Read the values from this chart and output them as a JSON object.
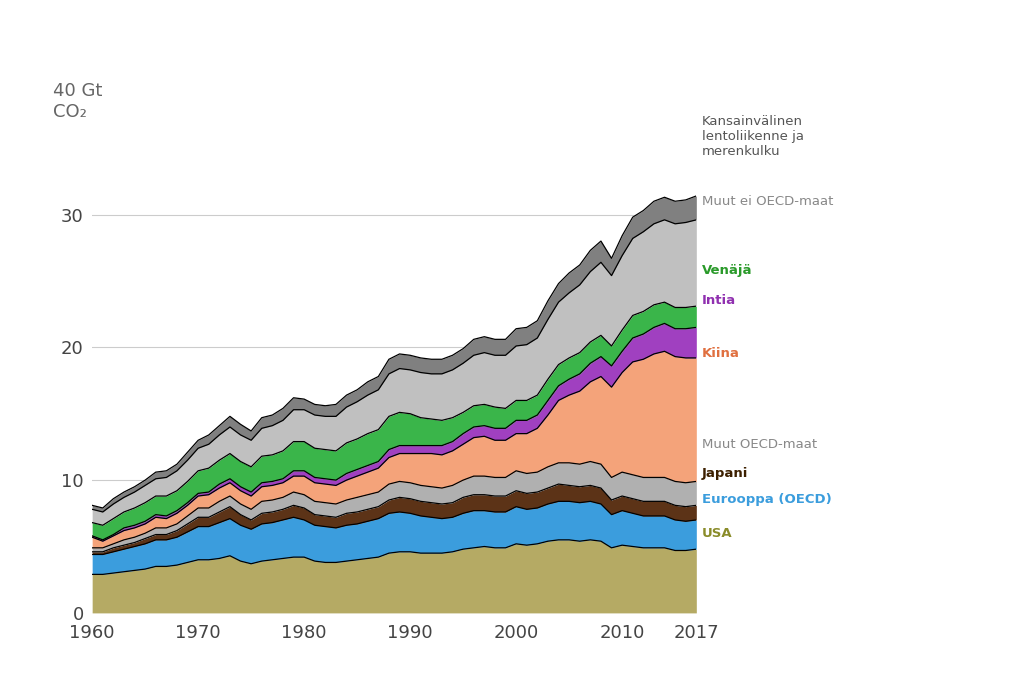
{
  "ylim": [
    0,
    40
  ],
  "xlim": [
    1960,
    2017
  ],
  "yticks": [
    0,
    10,
    20,
    30
  ],
  "xticks": [
    1960,
    1970,
    1980,
    1990,
    2000,
    2010,
    2017
  ],
  "background_color": "#ffffff",
  "years": [
    1960,
    1961,
    1962,
    1963,
    1964,
    1965,
    1966,
    1967,
    1968,
    1969,
    1970,
    1971,
    1972,
    1973,
    1974,
    1975,
    1976,
    1977,
    1978,
    1979,
    1980,
    1981,
    1982,
    1983,
    1984,
    1985,
    1986,
    1987,
    1988,
    1989,
    1990,
    1991,
    1992,
    1993,
    1994,
    1995,
    1996,
    1997,
    1998,
    1999,
    2000,
    2001,
    2002,
    2003,
    2004,
    2005,
    2006,
    2007,
    2008,
    2009,
    2010,
    2011,
    2012,
    2013,
    2014,
    2015,
    2016,
    2017
  ],
  "series": {
    "USA": {
      "color": "#b5aa64",
      "label_color": "#8a8c2a",
      "values": [
        2.9,
        2.9,
        3.0,
        3.1,
        3.2,
        3.3,
        3.5,
        3.5,
        3.6,
        3.8,
        4.0,
        4.0,
        4.1,
        4.3,
        3.9,
        3.7,
        3.9,
        4.0,
        4.1,
        4.2,
        4.2,
        3.9,
        3.8,
        3.8,
        3.9,
        4.0,
        4.1,
        4.2,
        4.5,
        4.6,
        4.6,
        4.5,
        4.5,
        4.5,
        4.6,
        4.8,
        4.9,
        5.0,
        4.9,
        4.9,
        5.2,
        5.1,
        5.2,
        5.4,
        5.5,
        5.5,
        5.4,
        5.5,
        5.4,
        4.9,
        5.1,
        5.0,
        4.9,
        4.9,
        4.9,
        4.7,
        4.7,
        4.8
      ]
    },
    "Eurooppa (OECD)": {
      "color": "#3b9ddd",
      "label_color": "#3b9ddd",
      "values": [
        1.5,
        1.5,
        1.6,
        1.7,
        1.8,
        1.9,
        2.0,
        2.0,
        2.1,
        2.3,
        2.5,
        2.5,
        2.7,
        2.8,
        2.7,
        2.6,
        2.8,
        2.8,
        2.9,
        3.0,
        2.8,
        2.7,
        2.7,
        2.6,
        2.7,
        2.7,
        2.8,
        2.9,
        3.0,
        3.0,
        2.9,
        2.8,
        2.7,
        2.6,
        2.6,
        2.7,
        2.8,
        2.7,
        2.7,
        2.7,
        2.8,
        2.7,
        2.7,
        2.8,
        2.9,
        2.9,
        2.9,
        2.9,
        2.8,
        2.5,
        2.6,
        2.5,
        2.4,
        2.4,
        2.4,
        2.3,
        2.2,
        2.2
      ]
    },
    "Japani": {
      "color": "#5c3317",
      "label_color": "#3d2000",
      "values": [
        0.2,
        0.2,
        0.3,
        0.3,
        0.3,
        0.4,
        0.4,
        0.4,
        0.5,
        0.6,
        0.7,
        0.7,
        0.8,
        0.9,
        0.8,
        0.7,
        0.8,
        0.8,
        0.8,
        0.9,
        0.9,
        0.8,
        0.8,
        0.8,
        0.9,
        0.9,
        0.9,
        0.9,
        1.0,
        1.1,
        1.1,
        1.1,
        1.1,
        1.1,
        1.1,
        1.2,
        1.2,
        1.2,
        1.2,
        1.2,
        1.2,
        1.2,
        1.2,
        1.2,
        1.3,
        1.2,
        1.2,
        1.2,
        1.2,
        1.1,
        1.1,
        1.1,
        1.1,
        1.1,
        1.1,
        1.1,
        1.1,
        1.1
      ]
    },
    "Muut OECD-maat": {
      "color": "#b0b0b0",
      "label_color": "#888888",
      "values": [
        0.3,
        0.3,
        0.3,
        0.4,
        0.4,
        0.4,
        0.5,
        0.5,
        0.5,
        0.6,
        0.7,
        0.7,
        0.8,
        0.8,
        0.8,
        0.8,
        0.9,
        0.9,
        0.9,
        1.0,
        1.0,
        1.0,
        1.0,
        1.0,
        1.0,
        1.1,
        1.1,
        1.1,
        1.2,
        1.2,
        1.2,
        1.2,
        1.2,
        1.2,
        1.3,
        1.3,
        1.4,
        1.4,
        1.4,
        1.4,
        1.5,
        1.5,
        1.5,
        1.6,
        1.6,
        1.7,
        1.7,
        1.8,
        1.8,
        1.7,
        1.8,
        1.8,
        1.8,
        1.8,
        1.8,
        1.8,
        1.8,
        1.8
      ]
    },
    "Kiina": {
      "color": "#f4a37a",
      "label_color": "#e07040",
      "values": [
        0.8,
        0.5,
        0.6,
        0.7,
        0.7,
        0.7,
        0.8,
        0.7,
        0.8,
        0.8,
        0.9,
        1.0,
        1.0,
        1.0,
        1.0,
        1.0,
        1.1,
        1.1,
        1.1,
        1.2,
        1.4,
        1.4,
        1.4,
        1.4,
        1.5,
        1.6,
        1.7,
        1.8,
        2.0,
        2.1,
        2.2,
        2.4,
        2.5,
        2.5,
        2.6,
        2.7,
        2.9,
        3.0,
        2.8,
        2.8,
        2.8,
        3.0,
        3.3,
        3.9,
        4.7,
        5.1,
        5.5,
        6.0,
        6.6,
        6.8,
        7.5,
        8.5,
        8.9,
        9.3,
        9.5,
        9.4,
        9.4,
        9.3
      ]
    },
    "Intia": {
      "color": "#a040c0",
      "label_color": "#9030b0",
      "values": [
        0.1,
        0.1,
        0.1,
        0.2,
        0.2,
        0.2,
        0.2,
        0.2,
        0.2,
        0.2,
        0.2,
        0.2,
        0.3,
        0.3,
        0.3,
        0.3,
        0.3,
        0.3,
        0.3,
        0.4,
        0.4,
        0.4,
        0.4,
        0.4,
        0.5,
        0.5,
        0.5,
        0.5,
        0.6,
        0.6,
        0.6,
        0.6,
        0.6,
        0.7,
        0.7,
        0.8,
        0.8,
        0.8,
        0.9,
        0.9,
        1.0,
        1.0,
        1.0,
        1.1,
        1.1,
        1.2,
        1.3,
        1.4,
        1.5,
        1.6,
        1.6,
        1.8,
        1.9,
        2.0,
        2.1,
        2.1,
        2.2,
        2.3
      ]
    },
    "Venäjä": {
      "color": "#3ab54a",
      "label_color": "#2a9a2a",
      "values": [
        1.0,
        1.1,
        1.2,
        1.2,
        1.3,
        1.4,
        1.4,
        1.5,
        1.5,
        1.6,
        1.7,
        1.8,
        1.8,
        1.9,
        1.9,
        1.9,
        2.0,
        2.0,
        2.1,
        2.2,
        2.2,
        2.2,
        2.2,
        2.2,
        2.3,
        2.3,
        2.4,
        2.4,
        2.5,
        2.5,
        2.4,
        2.1,
        2.0,
        1.9,
        1.8,
        1.6,
        1.6,
        1.6,
        1.6,
        1.5,
        1.5,
        1.5,
        1.5,
        1.6,
        1.6,
        1.6,
        1.6,
        1.6,
        1.6,
        1.5,
        1.6,
        1.7,
        1.7,
        1.7,
        1.6,
        1.6,
        1.6,
        1.6
      ]
    },
    "Muut ei OECD-maat": {
      "color": "#c0c0c0",
      "label_color": "#888888",
      "values": [
        1.0,
        1.0,
        1.1,
        1.1,
        1.2,
        1.3,
        1.3,
        1.4,
        1.5,
        1.6,
        1.7,
        1.8,
        1.9,
        2.0,
        2.0,
        2.0,
        2.1,
        2.2,
        2.3,
        2.4,
        2.4,
        2.5,
        2.5,
        2.6,
        2.7,
        2.8,
        2.9,
        3.0,
        3.2,
        3.3,
        3.3,
        3.4,
        3.4,
        3.5,
        3.6,
        3.7,
        3.8,
        3.9,
        3.9,
        4.0,
        4.1,
        4.2,
        4.3,
        4.5,
        4.7,
        4.9,
        5.1,
        5.3,
        5.5,
        5.3,
        5.6,
        5.8,
        6.0,
        6.1,
        6.2,
        6.3,
        6.4,
        6.5
      ]
    },
    "Kansainvälinen lentoliikenne ja merenkulku": {
      "color": "#808080",
      "label_color": "#555555",
      "values": [
        0.3,
        0.3,
        0.4,
        0.4,
        0.4,
        0.4,
        0.5,
        0.5,
        0.5,
        0.6,
        0.6,
        0.7,
        0.7,
        0.8,
        0.8,
        0.7,
        0.8,
        0.8,
        0.9,
        0.9,
        0.8,
        0.8,
        0.8,
        0.9,
        0.9,
        0.9,
        1.0,
        1.0,
        1.1,
        1.1,
        1.1,
        1.1,
        1.1,
        1.1,
        1.1,
        1.1,
        1.2,
        1.2,
        1.2,
        1.2,
        1.3,
        1.3,
        1.3,
        1.4,
        1.4,
        1.5,
        1.5,
        1.6,
        1.6,
        1.3,
        1.5,
        1.6,
        1.6,
        1.7,
        1.7,
        1.7,
        1.7,
        1.8
      ]
    }
  },
  "layer_order": [
    "USA",
    "Eurooppa (OECD)",
    "Japani",
    "Muut OECD-maat",
    "Kiina",
    "Intia",
    "Venäjä",
    "Muut ei OECD-maat",
    "Kansainvälinen lentoliikenne ja merenkulku"
  ],
  "labels": {
    "Kansainvälinen lentoliikenne ja merenkulku": {
      "text": "Kansainvälinen\nlentoliikenne ja\nmerenkulku",
      "y": 37.5,
      "fontsize": 9.5,
      "bold": false
    },
    "Muut ei OECD-maat": {
      "text": "Muut ei OECD-maat",
      "y": 31.5,
      "fontsize": 9.5,
      "bold": false
    },
    "Venäjä": {
      "text": "Venäjä",
      "y": 26.3,
      "fontsize": 9.5,
      "bold": true
    },
    "Intia": {
      "text": "Intia",
      "y": 24.0,
      "fontsize": 9.5,
      "bold": true
    },
    "Kiina": {
      "text": "Kiina",
      "y": 20.0,
      "fontsize": 9.5,
      "bold": true
    },
    "Muut OECD-maat": {
      "text": "Muut OECD-maat",
      "y": 13.2,
      "fontsize": 9.5,
      "bold": false
    },
    "Japani": {
      "text": "Japani",
      "y": 11.0,
      "fontsize": 9.5,
      "bold": true
    },
    "Eurooppa (OECD)": {
      "text": "Eurooppa (OECD)",
      "y": 9.0,
      "fontsize": 9.5,
      "bold": true
    },
    "USA": {
      "text": "USA",
      "y": 6.5,
      "fontsize": 9.5,
      "bold": true
    }
  }
}
